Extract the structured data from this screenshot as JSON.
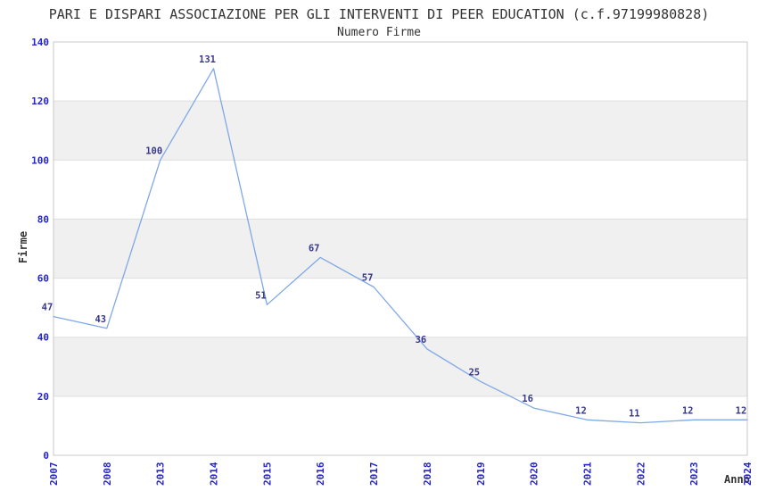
{
  "chart_data": {
    "type": "line",
    "title": "PARI E DISPARI ASSOCIAZIONE PER GLI INTERVENTI DI PEER EDUCATION (c.f.97199980828)",
    "subtitle": "Numero Firme",
    "xlabel": "Anno",
    "ylabel": "Firme",
    "categories": [
      "2007",
      "2008",
      "2013",
      "2014",
      "2015",
      "2016",
      "2017",
      "2018",
      "2019",
      "2020",
      "2021",
      "2022",
      "2023",
      "2024"
    ],
    "values": [
      47,
      43,
      100,
      131,
      51,
      67,
      57,
      36,
      25,
      16,
      12,
      11,
      12,
      12
    ],
    "ylim": [
      0,
      140
    ],
    "ytick_step": 20,
    "yticks": [
      0,
      20,
      40,
      60,
      80,
      100,
      120,
      140
    ],
    "grid": "horizontal-bands-alternating",
    "legend": "none",
    "colors": {
      "line": "#7fa8e6",
      "tick_label": "#2424cc",
      "data_label": "#38388c",
      "band": "#f0f0f0",
      "gridline": "#dedede",
      "frame": "#c9c9c9",
      "text": "#333333",
      "background": "#ffffff"
    }
  }
}
